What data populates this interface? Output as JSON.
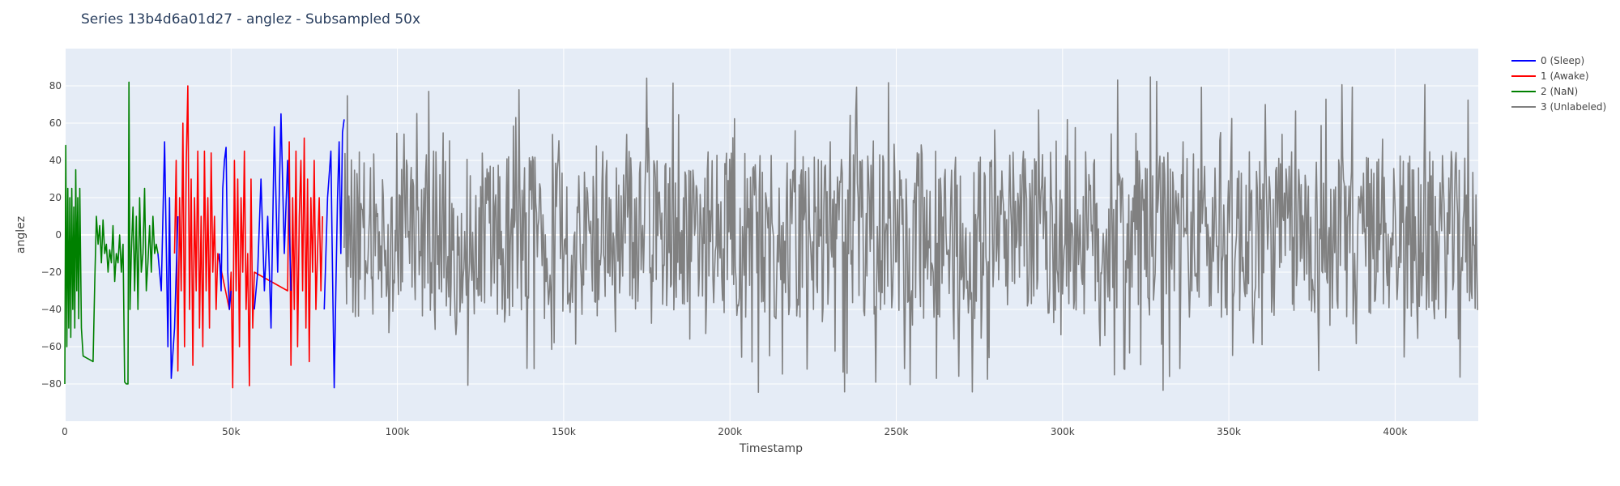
{
  "chart_data": {
    "type": "line",
    "title": "Series 13b4d6a01d27 - anglez - Subsampled 50x",
    "xlabel": "Timestamp",
    "ylabel": "anglez",
    "xlim": [
      0,
      425000
    ],
    "ylim": [
      -100,
      100
    ],
    "x_ticks": [
      {
        "value": 0,
        "label": "0"
      },
      {
        "value": 50000,
        "label": "50k"
      },
      {
        "value": 100000,
        "label": "100k"
      },
      {
        "value": 150000,
        "label": "150k"
      },
      {
        "value": 200000,
        "label": "200k"
      },
      {
        "value": 250000,
        "label": "250k"
      },
      {
        "value": 300000,
        "label": "300k"
      },
      {
        "value": 350000,
        "label": "350k"
      },
      {
        "value": 400000,
        "label": "400k"
      }
    ],
    "y_ticks": [
      {
        "value": -80,
        "label": "−80"
      },
      {
        "value": -60,
        "label": "−60"
      },
      {
        "value": -40,
        "label": "−40"
      },
      {
        "value": -20,
        "label": "−20"
      },
      {
        "value": 0,
        "label": "0"
      },
      {
        "value": 20,
        "label": "20"
      },
      {
        "value": 40,
        "label": "40"
      },
      {
        "value": 60,
        "label": "60"
      },
      {
        "value": 80,
        "label": "80"
      }
    ],
    "grid": true,
    "legend_position": "right",
    "plot_bgcolor": "#e5ecf6",
    "series": [
      {
        "name": "0 (Sleep)",
        "color": "#0000ff",
        "segments": [
          [
            [
              28000,
              -10
            ],
            [
              29000,
              -30
            ],
            [
              30000,
              50
            ],
            [
              31000,
              -60
            ],
            [
              31500,
              20
            ],
            [
              32000,
              -77
            ],
            [
              33000,
              -50
            ],
            [
              34000,
              10
            ]
          ],
          [
            [
              46500,
              -10
            ],
            [
              47000,
              -30
            ],
            [
              47500,
              25
            ],
            [
              48000,
              40
            ],
            [
              48500,
              47
            ],
            [
              49000,
              -20
            ],
            [
              49500,
              -40
            ],
            [
              50000,
              -30
            ]
          ],
          [
            [
              57000,
              -40
            ],
            [
              58000,
              -20
            ],
            [
              59000,
              30
            ],
            [
              60000,
              -30
            ],
            [
              61000,
              10
            ],
            [
              62000,
              -50
            ],
            [
              63000,
              58
            ],
            [
              64000,
              -20
            ],
            [
              65000,
              65
            ],
            [
              66000,
              -10
            ],
            [
              67000,
              40
            ],
            [
              68000,
              -30
            ]
          ],
          [
            [
              78000,
              -40
            ],
            [
              79000,
              20
            ],
            [
              80000,
              45
            ],
            [
              80500,
              -20
            ],
            [
              81000,
              -82
            ],
            [
              81500,
              -30
            ],
            [
              82000,
              20
            ],
            [
              82500,
              50
            ],
            [
              83000,
              -10
            ],
            [
              83500,
              55
            ],
            [
              84000,
              62
            ]
          ]
        ],
        "values": [
          {
            "x": 84000,
            "y": 62
          }
        ]
      },
      {
        "name": "1 (Awake)",
        "color": "#ff0000",
        "values": [
          [
            33000,
            -10
          ],
          [
            33500,
            40
          ],
          [
            34000,
            -73
          ],
          [
            34500,
            20
          ],
          [
            35000,
            -30
          ],
          [
            35500,
            60
          ],
          [
            36000,
            -60
          ],
          [
            36500,
            38
          ],
          [
            37000,
            80
          ],
          [
            37500,
            -40
          ],
          [
            38000,
            30
          ],
          [
            38500,
            -70
          ],
          [
            39000,
            20
          ],
          [
            39500,
            -30
          ],
          [
            40000,
            45
          ],
          [
            40500,
            -50
          ],
          [
            41000,
            10
          ],
          [
            41500,
            -60
          ],
          [
            42000,
            45
          ],
          [
            42500,
            -30
          ],
          [
            43000,
            20
          ],
          [
            43500,
            -50
          ],
          [
            44000,
            44
          ],
          [
            44500,
            -20
          ],
          [
            45000,
            10
          ],
          [
            45500,
            -40
          ],
          [
            46000,
            -10
          ],
          [
            49500,
            -40
          ],
          [
            50000,
            -20
          ],
          [
            50500,
            -82
          ],
          [
            51000,
            40
          ],
          [
            51500,
            -30
          ],
          [
            52000,
            30
          ],
          [
            52500,
            -60
          ],
          [
            53000,
            20
          ],
          [
            53500,
            -20
          ],
          [
            54000,
            45
          ],
          [
            54500,
            -40
          ],
          [
            55000,
            -10
          ],
          [
            55500,
            -81
          ],
          [
            56000,
            30
          ],
          [
            56500,
            -50
          ],
          [
            57000,
            -20
          ],
          [
            67000,
            -30
          ],
          [
            67500,
            50
          ],
          [
            68000,
            -70
          ],
          [
            68500,
            20
          ],
          [
            69000,
            -40
          ],
          [
            69500,
            45
          ],
          [
            70000,
            -60
          ],
          [
            70500,
            10
          ],
          [
            71000,
            40
          ],
          [
            71500,
            -30
          ],
          [
            72000,
            52
          ],
          [
            72500,
            -50
          ],
          [
            73000,
            30
          ],
          [
            73500,
            -68
          ],
          [
            74000,
            20
          ],
          [
            74500,
            -20
          ],
          [
            75000,
            40
          ],
          [
            75500,
            -40
          ],
          [
            76000,
            -10
          ],
          [
            76500,
            20
          ],
          [
            77000,
            -30
          ],
          [
            77500,
            10
          ]
        ]
      },
      {
        "name": "2 (NaN)",
        "color": "#008000",
        "values": [
          [
            0,
            -80
          ],
          [
            300,
            48
          ],
          [
            600,
            -60
          ],
          [
            900,
            25
          ],
          [
            1200,
            -50
          ],
          [
            1500,
            20
          ],
          [
            1800,
            -55
          ],
          [
            2100,
            25
          ],
          [
            2400,
            -40
          ],
          [
            2700,
            15
          ],
          [
            3000,
            -50
          ],
          [
            3300,
            35
          ],
          [
            3600,
            -30
          ],
          [
            3900,
            20
          ],
          [
            4200,
            -45
          ],
          [
            4500,
            25
          ],
          [
            4800,
            -20
          ],
          [
            5000,
            -50
          ],
          [
            5500,
            -65
          ],
          [
            6500,
            -66
          ],
          [
            7500,
            -67
          ],
          [
            8500,
            -68
          ],
          [
            9000,
            -25
          ],
          [
            9500,
            10
          ],
          [
            10000,
            -5
          ],
          [
            10500,
            5
          ],
          [
            11000,
            -15
          ],
          [
            11500,
            8
          ],
          [
            12000,
            -10
          ],
          [
            12500,
            -5
          ],
          [
            13000,
            -20
          ],
          [
            13500,
            -8
          ],
          [
            14000,
            -15
          ],
          [
            14500,
            5
          ],
          [
            15000,
            -25
          ],
          [
            15500,
            -10
          ],
          [
            16000,
            -15
          ],
          [
            16500,
            0
          ],
          [
            17000,
            -20
          ],
          [
            17500,
            -5
          ],
          [
            18000,
            -79
          ],
          [
            18500,
            -80
          ],
          [
            19000,
            -80
          ],
          [
            19300,
            82
          ],
          [
            19600,
            -40
          ],
          [
            20000,
            -10
          ],
          [
            20500,
            15
          ],
          [
            21000,
            -30
          ],
          [
            21500,
            10
          ],
          [
            22000,
            -40
          ],
          [
            22500,
            20
          ],
          [
            23000,
            -20
          ],
          [
            23500,
            -10
          ],
          [
            24000,
            25
          ],
          [
            24500,
            -30
          ],
          [
            25000,
            -15
          ],
          [
            25500,
            5
          ],
          [
            26000,
            -20
          ],
          [
            26500,
            10
          ],
          [
            27000,
            -10
          ],
          [
            27500,
            -5
          ],
          [
            28000,
            -10
          ]
        ]
      },
      {
        "name": "3 (Unlabeled)",
        "color": "#808080",
        "values": [],
        "generated": {
          "x_start": 84000,
          "x_end": 425000,
          "y_min": -88,
          "y_max": 88
        }
      }
    ]
  }
}
